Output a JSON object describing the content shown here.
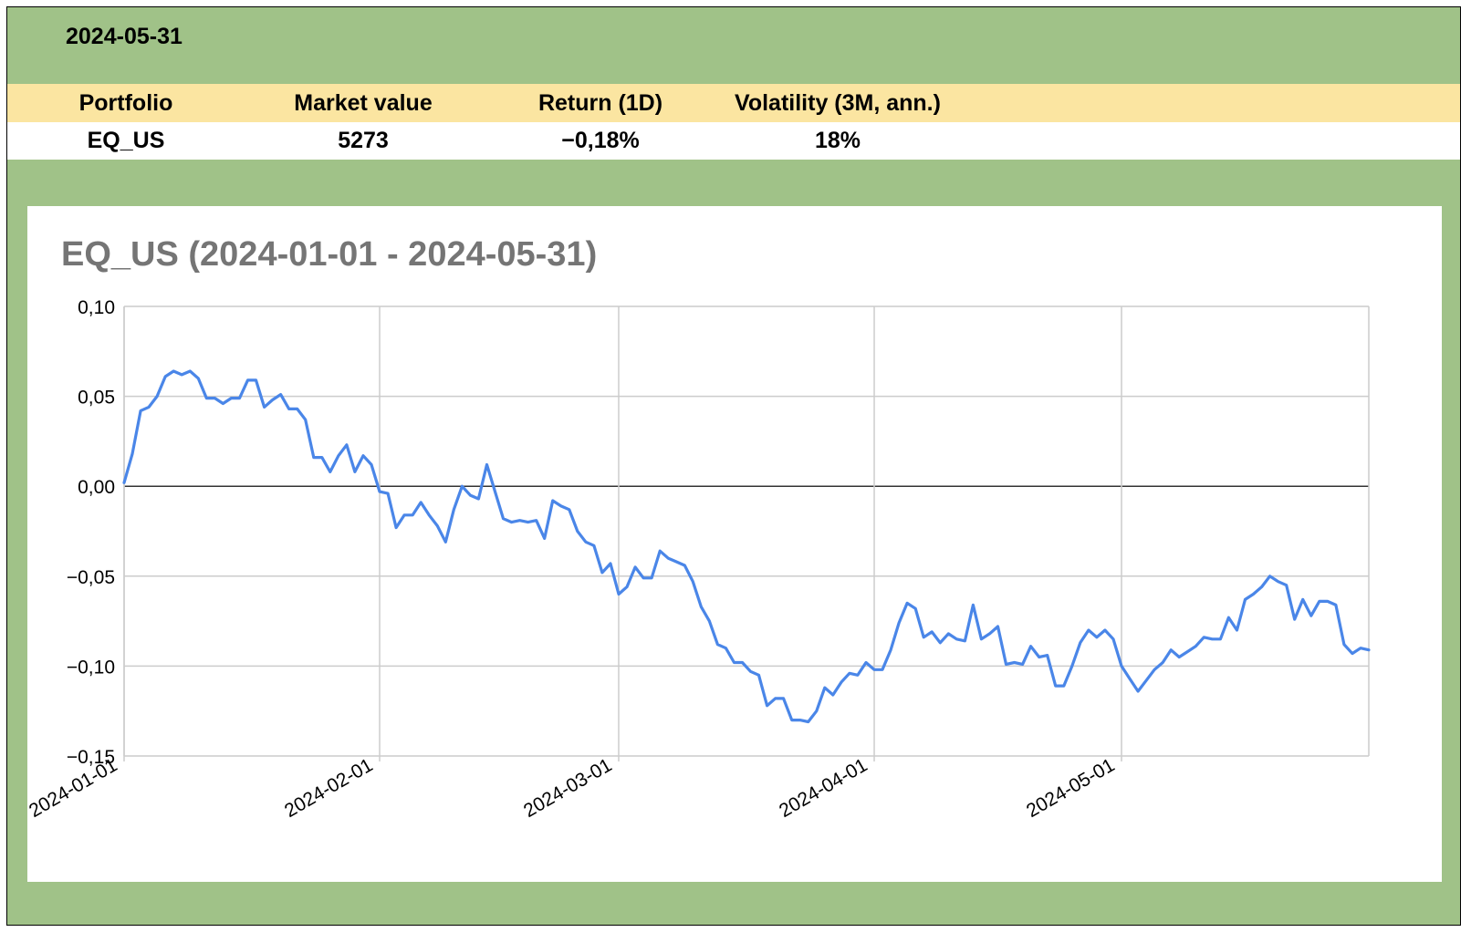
{
  "report_date": "2024-05-31",
  "summary_table": {
    "headers": [
      "Portfolio",
      "Market value",
      "Return (1D)",
      "Volatility (3M, ann.)"
    ],
    "row": [
      "EQ_US",
      "5273",
      "−0,18%",
      "18%"
    ]
  },
  "colors": {
    "background": "#a0c288",
    "header_fill": "#fbe5a1",
    "line": "#4a86e8",
    "title": "#757575"
  },
  "chart_data": {
    "type": "line",
    "title": "EQ_US (2024-01-01 - 2024-05-31)",
    "xlabel": "",
    "ylabel": "",
    "x_start": "2024-01-01",
    "x_end": "2024-05-31",
    "ylim": [
      -0.15,
      0.1
    ],
    "yticks": [
      0.1,
      0.05,
      0.0,
      -0.05,
      -0.1,
      -0.15
    ],
    "ytick_labels": [
      "0,10",
      "0,05",
      "0,00",
      "−0,05",
      "−0,10",
      "−0,15"
    ],
    "xticks": [
      {
        "day": 0,
        "label": "2024-01-01"
      },
      {
        "day": 31,
        "label": "2024-02-01"
      },
      {
        "day": 60,
        "label": "2024-03-01"
      },
      {
        "day": 91,
        "label": "2024-04-01"
      },
      {
        "day": 121,
        "label": "2024-05-01"
      }
    ],
    "grid": true,
    "series": [
      {
        "name": "EQ_US",
        "x_days": [
          0,
          1,
          2,
          3,
          4,
          5,
          6,
          7,
          8,
          9,
          10,
          11,
          12,
          13,
          14,
          15,
          16,
          17,
          18,
          19,
          20,
          21,
          22,
          23,
          24,
          25,
          26,
          27,
          28,
          29,
          30,
          31,
          32,
          33,
          34,
          35,
          36,
          37,
          38,
          39,
          40,
          41,
          42,
          43,
          44,
          45,
          46,
          47,
          48,
          49,
          50,
          51,
          52,
          53,
          54,
          55,
          56,
          57,
          58,
          59,
          60,
          61,
          62,
          63,
          64,
          65,
          66,
          67,
          68,
          69,
          70,
          71,
          72,
          73,
          74,
          75,
          76,
          77,
          78,
          79,
          80,
          81,
          82,
          83,
          84,
          85,
          86,
          87,
          88,
          89,
          90,
          91,
          92,
          93,
          94,
          95,
          96,
          97,
          98,
          99,
          100,
          101,
          102,
          103,
          104,
          105,
          106,
          107,
          108,
          109,
          110,
          111,
          112,
          113,
          114,
          115,
          116,
          117,
          118,
          119,
          120,
          121,
          122,
          123,
          124,
          125,
          126,
          127,
          128,
          129,
          130,
          131,
          132,
          133,
          134,
          135,
          136,
          137,
          138,
          139,
          140,
          141,
          142,
          143,
          144,
          145,
          146,
          147,
          148,
          149,
          150,
          151
        ],
        "values": [
          0.002,
          0.018,
          0.042,
          0.044,
          0.05,
          0.061,
          0.064,
          0.062,
          0.064,
          0.06,
          0.049,
          0.049,
          0.046,
          0.049,
          0.049,
          0.059,
          0.059,
          0.044,
          0.048,
          0.051,
          0.043,
          0.043,
          0.037,
          0.016,
          0.016,
          0.008,
          0.017,
          0.023,
          0.008,
          0.017,
          0.012,
          -0.003,
          -0.004,
          -0.023,
          -0.016,
          -0.016,
          -0.009,
          -0.016,
          -0.022,
          -0.031,
          -0.013,
          0.0,
          -0.005,
          -0.007,
          0.012,
          -0.003,
          -0.018,
          -0.02,
          -0.019,
          -0.02,
          -0.019,
          -0.029,
          -0.008,
          -0.011,
          -0.013,
          -0.025,
          -0.031,
          -0.033,
          -0.048,
          -0.043,
          -0.06,
          -0.056,
          -0.045,
          -0.051,
          -0.051,
          -0.036,
          -0.04,
          -0.042,
          -0.044,
          -0.053,
          -0.067,
          -0.075,
          -0.088,
          -0.09,
          -0.098,
          -0.098,
          -0.103,
          -0.105,
          -0.122,
          -0.118,
          -0.118,
          -0.13,
          -0.13,
          -0.131,
          -0.125,
          -0.112,
          -0.116,
          -0.109,
          -0.104,
          -0.105,
          -0.098,
          -0.102,
          -0.102,
          -0.091,
          -0.076,
          -0.065,
          -0.068,
          -0.084,
          -0.081,
          -0.087,
          -0.082,
          -0.085,
          -0.086,
          -0.066,
          -0.085,
          -0.082,
          -0.078,
          -0.099,
          -0.098,
          -0.099,
          -0.089,
          -0.095,
          -0.094,
          -0.111,
          -0.111,
          -0.1,
          -0.087,
          -0.08,
          -0.084,
          -0.08,
          -0.085,
          -0.1,
          -0.107,
          -0.114,
          -0.108,
          -0.102,
          -0.098,
          -0.091,
          -0.095,
          -0.092,
          -0.089,
          -0.084,
          -0.085,
          -0.085,
          -0.073,
          -0.08,
          -0.063,
          -0.06,
          -0.056,
          -0.05,
          -0.053,
          -0.055,
          -0.074,
          -0.063,
          -0.072,
          -0.064,
          -0.064,
          -0.066,
          -0.088,
          -0.093,
          -0.09,
          -0.091
        ]
      }
    ]
  }
}
